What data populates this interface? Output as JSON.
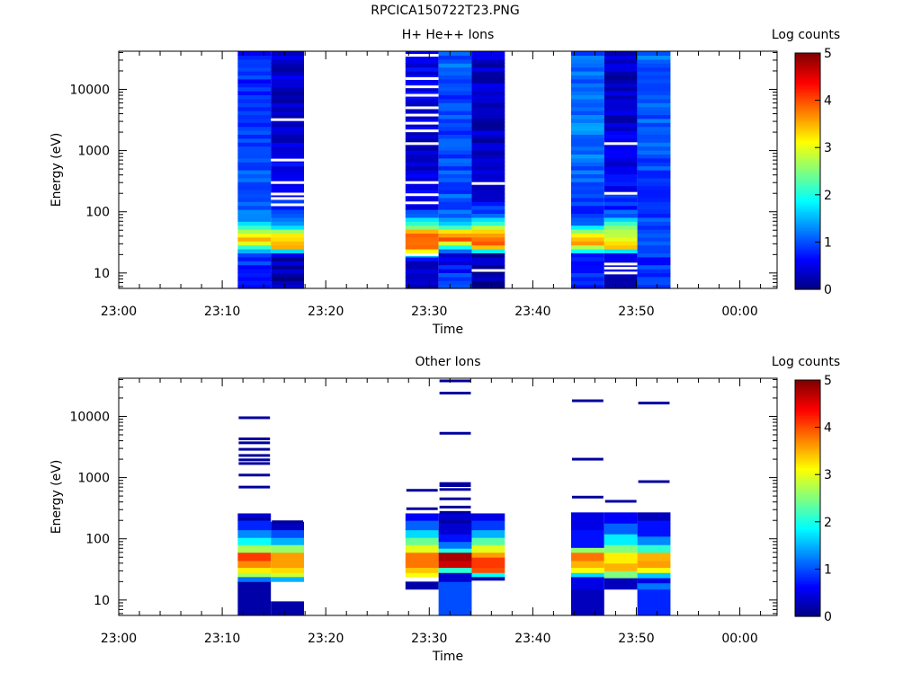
{
  "page_title": "RPCICA150722T23.PNG",
  "colors": {
    "axis": "#000000",
    "background": "#ffffff",
    "colormap": "jet",
    "colormap_stops": [
      "#00007f",
      "#0000ff",
      "#007fff",
      "#00ffff",
      "#7fff7f",
      "#ffff00",
      "#ff7f00",
      "#ff0000",
      "#7f0000"
    ]
  },
  "chart_data": [
    {
      "type": "heatmap",
      "title": "H+ He++ Ions",
      "xlabel": "Time",
      "ylabel": "Energy (eV)",
      "x_ticks": [
        "23:00",
        "23:10",
        "23:20",
        "23:30",
        "23:40",
        "23:50",
        "00:00"
      ],
      "x_range_minutes": [
        0,
        63.6
      ],
      "y_scale": "log",
      "y_range": [
        5.6,
        42000
      ],
      "y_ticks": [
        "10",
        "100",
        "1000",
        "10000"
      ],
      "colorbar": {
        "label": "Log counts",
        "range": [
          0,
          5
        ],
        "ticks": [
          "0",
          "1",
          "2",
          "3",
          "4",
          "5"
        ]
      },
      "columns": [
        {
          "t0": 11.5,
          "t1": 14.7,
          "profile": [
            [
              7,
              0.9
            ],
            [
              15,
              0.8
            ],
            [
              22,
              1.1
            ],
            [
              28,
              2.2
            ],
            [
              35,
              3.6
            ],
            [
              45,
              3.0
            ],
            [
              55,
              2.2
            ],
            [
              70,
              1.2
            ],
            [
              200,
              1.0
            ],
            [
              2000,
              0.9
            ],
            [
              42000,
              0.8
            ]
          ],
          "gaps": []
        },
        {
          "t0": 14.7,
          "t1": 17.9,
          "profile": [
            [
              7,
              0.2
            ],
            [
              20,
              0.3
            ],
            [
              28,
              3.9
            ],
            [
              36,
              3.4
            ],
            [
              45,
              3.0
            ],
            [
              55,
              2.0
            ],
            [
              70,
              1.2
            ],
            [
              200,
              0.6
            ],
            [
              2000,
              0.4
            ],
            [
              42000,
              0.4
            ]
          ],
          "gaps": [
            130,
            165,
            195,
            300,
            700,
            3200
          ]
        },
        {
          "t0": 27.7,
          "t1": 30.9,
          "profile": [
            [
              7,
              0.4
            ],
            [
              18,
              0.5
            ],
            [
              22,
              3.0
            ],
            [
              30,
              4.0
            ],
            [
              45,
              3.6
            ],
            [
              58,
              2.5
            ],
            [
              80,
              1.4
            ],
            [
              120,
              0.5
            ],
            [
              2000,
              0.4
            ],
            [
              42000,
              0.6
            ]
          ],
          "gaps": [
            20,
            140,
            190,
            300,
            1300,
            2100,
            2800,
            3800,
            5000,
            8000,
            11000,
            15000,
            36000
          ]
        },
        {
          "t0": 30.9,
          "t1": 34.1,
          "profile": [
            [
              7,
              1.0
            ],
            [
              20,
              0.5
            ],
            [
              28,
              2.0
            ],
            [
              35,
              3.8
            ],
            [
              45,
              3.5
            ],
            [
              55,
              2.5
            ],
            [
              70,
              1.2
            ],
            [
              200,
              1.0
            ],
            [
              2000,
              0.9
            ],
            [
              42000,
              1.1
            ]
          ],
          "gaps": []
        },
        {
          "t0": 34.1,
          "t1": 37.3,
          "profile": [
            [
              7,
              0.1
            ],
            [
              20,
              0.3
            ],
            [
              26,
              3.5
            ],
            [
              35,
              4.0
            ],
            [
              45,
              3.5
            ],
            [
              60,
              2.6
            ],
            [
              80,
              1.2
            ],
            [
              200,
              0.4
            ],
            [
              2000,
              0.3
            ],
            [
              42000,
              0.4
            ]
          ],
          "gaps": [
            11,
            290
          ]
        },
        {
          "t0": 43.7,
          "t1": 46.9,
          "profile": [
            [
              7,
              0.7
            ],
            [
              20,
              0.9
            ],
            [
              28,
              3.2
            ],
            [
              35,
              3.6
            ],
            [
              45,
              3.0
            ],
            [
              55,
              1.8
            ],
            [
              70,
              0.8
            ],
            [
              200,
              1.1
            ],
            [
              2000,
              1.2
            ],
            [
              42000,
              1.1
            ]
          ],
          "gaps": []
        },
        {
          "t0": 46.9,
          "t1": 50.1,
          "profile": [
            [
              7,
              0.1
            ],
            [
              20,
              0.5
            ],
            [
              27,
              3.4
            ],
            [
              40,
              3.0
            ],
            [
              60,
              2.4
            ],
            [
              80,
              1.3
            ],
            [
              120,
              0.8
            ],
            [
              2000,
              0.4
            ],
            [
              42000,
              0.3
            ]
          ],
          "gaps": [
            10,
            12,
            14,
            200,
            1300
          ]
        },
        {
          "t0": 50.1,
          "t1": 53.3,
          "profile": [
            [
              7,
              1.0
            ],
            [
              15,
              0.8
            ],
            [
              30,
              1.0
            ],
            [
              40,
              1.3
            ],
            [
              60,
              1.0
            ],
            [
              200,
              0.9
            ],
            [
              2000,
              1.0
            ],
            [
              42000,
              1.1
            ]
          ],
          "gaps": []
        }
      ]
    },
    {
      "type": "heatmap",
      "title": "Other Ions",
      "xlabel": "Time",
      "ylabel": "Energy (eV)",
      "x_ticks": [
        "23:00",
        "23:10",
        "23:20",
        "23:30",
        "23:40",
        "23:50",
        "00:00"
      ],
      "x_range_minutes": [
        0,
        63.6
      ],
      "y_scale": "log",
      "y_range": [
        5.6,
        42000
      ],
      "y_ticks": [
        "10",
        "100",
        "1000",
        "10000"
      ],
      "colorbar": {
        "label": "Log counts",
        "range": [
          0,
          5
        ],
        "ticks": [
          "0",
          "1",
          "2",
          "3",
          "4",
          "5"
        ]
      },
      "columns": [
        {
          "t0": 11.5,
          "t1": 14.7,
          "ranges": [
            [
              5.6,
              20,
              0.2
            ],
            [
              20,
              24,
              1.2
            ],
            [
              24,
              28,
              2.7
            ],
            [
              28,
              34,
              3.2
            ],
            [
              34,
              44,
              3.7
            ],
            [
              44,
              60,
              4.1
            ],
            [
              60,
              80,
              2.7
            ],
            [
              80,
              105,
              1.9
            ],
            [
              105,
              140,
              1.3
            ],
            [
              140,
              200,
              0.8
            ],
            [
              200,
              260,
              0.4
            ]
          ],
          "lines": [
            210,
            700,
            1100,
            1700,
            1950,
            2300,
            2900,
            3700,
            4300,
            9500
          ]
        },
        {
          "t0": 14.7,
          "t1": 17.9,
          "ranges": [
            [
              5.6,
              9.5,
              0.2
            ],
            [
              20,
              24,
              1.5
            ],
            [
              24,
              28,
              2.9
            ],
            [
              28,
              34,
              3.3
            ],
            [
              34,
              44,
              3.6
            ],
            [
              44,
              60,
              3.6
            ],
            [
              60,
              80,
              2.6
            ],
            [
              80,
              105,
              1.5
            ],
            [
              105,
              140,
              1.0
            ],
            [
              140,
              190,
              0.3
            ]
          ],
          "lines": [
            190
          ]
        },
        {
          "t0": 27.7,
          "t1": 30.9,
          "ranges": [
            [
              15,
              20,
              0.2
            ],
            [
              24,
              28,
              3.1
            ],
            [
              28,
              34,
              3.4
            ],
            [
              34,
              44,
              3.8
            ],
            [
              44,
              60,
              3.8
            ],
            [
              60,
              80,
              3.0
            ],
            [
              80,
              105,
              2.4
            ],
            [
              105,
              140,
              1.7
            ],
            [
              140,
              200,
              1.1
            ],
            [
              200,
              260,
              0.6
            ]
          ],
          "lines": [
            310,
            620
          ]
        },
        {
          "t0": 30.9,
          "t1": 34.1,
          "ranges": [
            [
              5.6,
              20,
              1.0
            ],
            [
              20,
              28,
              0.4
            ],
            [
              28,
              34,
              2.1
            ],
            [
              34,
              44,
              4.6
            ],
            [
              44,
              60,
              4.8
            ],
            [
              60,
              70,
              2.0
            ],
            [
              70,
              90,
              1.2
            ],
            [
              90,
              120,
              0.7
            ],
            [
              120,
              260,
              0.4
            ]
          ],
          "lines": [
            190,
            270,
            330,
            450,
            640,
            740,
            800,
            5300,
            24000,
            38000
          ]
        },
        {
          "t0": 34.1,
          "t1": 37.3,
          "ranges": [
            [
              21,
              24,
              0.2
            ],
            [
              24,
              28,
              1.9
            ],
            [
              28,
              34,
              4.0
            ],
            [
              34,
              50,
              4.1
            ],
            [
              50,
              60,
              3.6
            ],
            [
              60,
              80,
              3.0
            ],
            [
              80,
              105,
              2.3
            ],
            [
              105,
              140,
              1.5
            ],
            [
              140,
              200,
              0.9
            ],
            [
              200,
              260,
              0.5
            ]
          ],
          "lines": []
        },
        {
          "t0": 43.7,
          "t1": 46.9,
          "ranges": [
            [
              5.6,
              15,
              0.3
            ],
            [
              15,
              24,
              0.5
            ],
            [
              24,
              28,
              1.7
            ],
            [
              28,
              34,
              3.1
            ],
            [
              34,
              44,
              3.5
            ],
            [
              44,
              60,
              3.8
            ],
            [
              60,
              72,
              2.6
            ],
            [
              72,
              140,
              0.7
            ],
            [
              140,
              270,
              0.5
            ]
          ],
          "lines": [
            480,
            2000,
            18000
          ]
        },
        {
          "t0": 46.9,
          "t1": 50.1,
          "ranges": [
            [
              15,
              23,
              0.3
            ],
            [
              23,
              30,
              2.5
            ],
            [
              30,
              40,
              3.5
            ],
            [
              40,
              60,
              3.2
            ],
            [
              60,
              80,
              2.5
            ],
            [
              80,
              120,
              1.8
            ],
            [
              120,
              180,
              1.1
            ],
            [
              180,
              270,
              0.6
            ]
          ],
          "lines": [
            410
          ]
        },
        {
          "t0": 50.1,
          "t1": 53.3,
          "ranges": [
            [
              5.6,
              15,
              0.8
            ],
            [
              15,
              19,
              1.2
            ],
            [
              19,
              23,
              0.5
            ],
            [
              23,
              28,
              1.6
            ],
            [
              28,
              34,
              3.1
            ],
            [
              34,
              44,
              3.6
            ],
            [
              44,
              60,
              3.5
            ],
            [
              60,
              80,
              2.1
            ],
            [
              80,
              110,
              1.3
            ],
            [
              110,
              200,
              0.7
            ],
            [
              200,
              270,
              0.3
            ]
          ],
          "lines": [
            860,
            16500
          ]
        }
      ]
    }
  ]
}
